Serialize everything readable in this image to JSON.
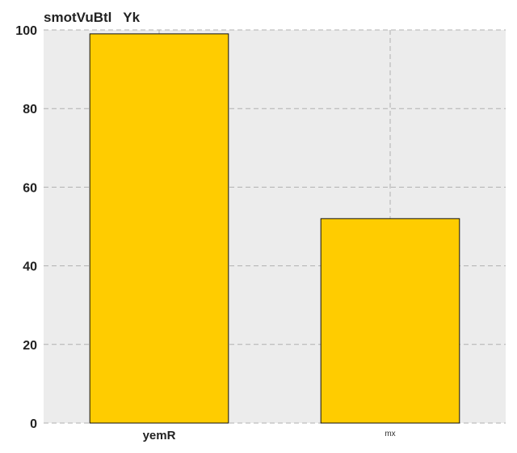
{
  "chart_data": {
    "type": "bar",
    "title": "smotVuBtl   Yk",
    "categories": [
      "yemR",
      "mx"
    ],
    "values": [
      99,
      52
    ],
    "ylim": [
      0,
      100
    ],
    "yticks": [
      0,
      20,
      40,
      60,
      80,
      100
    ],
    "grid": true,
    "colors": {
      "bar": "#ffcc00",
      "bar_edge": "#111111",
      "background": "#ececec",
      "grid": "#b0b0b0"
    }
  }
}
